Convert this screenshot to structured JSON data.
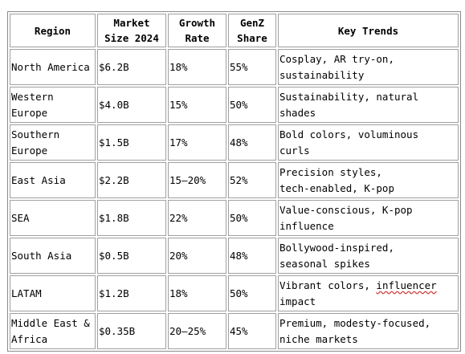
{
  "table": {
    "headers": [
      {
        "key": "region",
        "label": "Region"
      },
      {
        "key": "market_size",
        "label": "Market\nSize 2024"
      },
      {
        "key": "growth_rate",
        "label": "Growth\nRate"
      },
      {
        "key": "genz_share",
        "label": "GenZ\nShare"
      },
      {
        "key": "key_trends",
        "label": "Key Trends"
      }
    ],
    "rows": [
      {
        "region": "North America",
        "market_size": "$6.2B",
        "growth_rate": "18%",
        "genz_share": "55%",
        "key_trends": "Cosplay, AR try-on,\nsustainability"
      },
      {
        "region": "Western\nEurope",
        "market_size": "$4.0B",
        "growth_rate": "15%",
        "genz_share": "50%",
        "key_trends": "Sustainability, natural\nshades"
      },
      {
        "region": "Southern\nEurope",
        "market_size": "$1.5B",
        "growth_rate": "17%",
        "genz_share": "48%",
        "key_trends": "Bold colors, voluminous\ncurls"
      },
      {
        "region": "East Asia",
        "market_size": "$2.2B",
        "growth_rate": "15–20%",
        "genz_share": "52%",
        "key_trends": "Precision styles,\ntech-enabled, K-pop"
      },
      {
        "region": "SEA",
        "market_size": "$1.8B",
        "growth_rate": "22%",
        "genz_share": "50%",
        "key_trends": "Value-conscious, K-pop\ninfluence"
      },
      {
        "region": "South Asia",
        "market_size": "$0.5B",
        "growth_rate": "20%",
        "genz_share": "48%",
        "key_trends": "Bollywood-inspired,\nseasonal spikes"
      },
      {
        "region": "LATAM",
        "market_size": "$1.2B",
        "growth_rate": "18%",
        "genz_share": "50%",
        "key_trends_pre": "Vibrant colors, ",
        "key_trends_flagged": "influencer",
        "key_trends_post": "\nimpact"
      },
      {
        "region": "Middle East &\nAfrica",
        "market_size": "$0.35B",
        "growth_rate": "20–25%",
        "genz_share": "45%",
        "key_trends": "Premium, modesty-focused,\nniche markets"
      }
    ]
  }
}
